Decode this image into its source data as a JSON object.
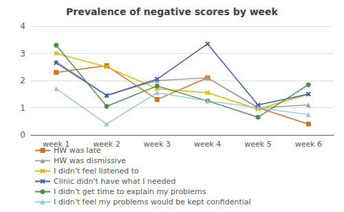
{
  "chart_data": {
    "type": "line",
    "title": "Prevalence of negative scores by week",
    "categories": [
      "week 1",
      "week 2",
      "week 3",
      "week 4",
      "week 5",
      "week 6"
    ],
    "series": [
      {
        "name": "HW was late",
        "color": "#d4711f",
        "marker": "square",
        "values": [
          2.3,
          2.55,
          1.3,
          2.1,
          1.0,
          0.4
        ]
      },
      {
        "name": "HW was dismissive",
        "color": "#a0a0a0",
        "marker": "triangle",
        "values": [
          2.7,
          1.45,
          2.0,
          2.1,
          1.0,
          1.1
        ]
      },
      {
        "name": "I didn't feel listened to",
        "color": "#e0b800",
        "marker": "x",
        "values": [
          3.0,
          2.5,
          1.7,
          1.55,
          0.95,
          1.5
        ]
      },
      {
        "name": "Clinic didn't have what I needed",
        "color": "#3a5aaa",
        "marker": "x",
        "values": [
          2.65,
          1.45,
          2.05,
          3.35,
          1.1,
          1.5
        ]
      },
      {
        "name": "I didn't get time to explain my problems",
        "color": "#4e8c4e",
        "marker": "circle",
        "values": [
          3.3,
          1.05,
          1.8,
          1.25,
          0.65,
          1.85
        ]
      },
      {
        "name": "I didn't feel my problems would be kept confidential",
        "color": "#92c5de",
        "marker": "triangle",
        "values": [
          1.7,
          0.4,
          1.55,
          1.25,
          1.0,
          0.75
        ]
      }
    ],
    "ylim": [
      0,
      4
    ],
    "yticks": [
      0,
      1,
      2,
      3,
      4
    ],
    "grid": true,
    "legend": "bottom"
  }
}
